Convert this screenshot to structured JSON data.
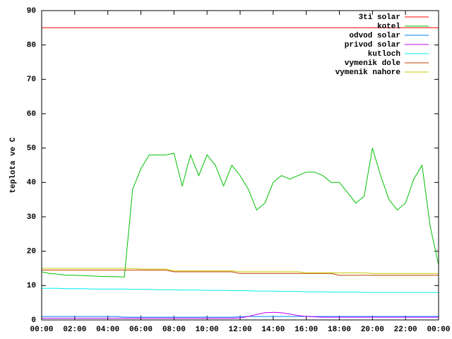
{
  "chart_data": {
    "type": "line",
    "ylabel": "teplota ve C",
    "x": [
      0,
      0.5,
      1,
      1.5,
      2,
      2.5,
      3,
      3.5,
      4,
      4.5,
      5,
      5.5,
      6,
      6.5,
      7,
      7.5,
      8,
      8.5,
      9,
      9.5,
      10,
      10.5,
      11,
      11.5,
      12,
      12.5,
      13,
      13.5,
      14,
      14.5,
      15,
      15.5,
      16,
      16.5,
      17,
      17.5,
      18,
      18.5,
      19,
      19.5,
      20,
      20.5,
      21,
      21.5,
      22,
      22.5,
      23,
      23.5,
      24
    ],
    "xlim": [
      0,
      24
    ],
    "xticks": [
      {
        "value": 0,
        "label": "00:00"
      },
      {
        "value": 2,
        "label": "02:00"
      },
      {
        "value": 4,
        "label": "04:00"
      },
      {
        "value": 6,
        "label": "06:00"
      },
      {
        "value": 8,
        "label": "08:00"
      },
      {
        "value": 10,
        "label": "10:00"
      },
      {
        "value": 12,
        "label": "12:00"
      },
      {
        "value": 14,
        "label": "14:00"
      },
      {
        "value": 16,
        "label": "16:00"
      },
      {
        "value": 18,
        "label": "18:00"
      },
      {
        "value": 20,
        "label": "20:00"
      },
      {
        "value": 22,
        "label": "22:00"
      },
      {
        "value": 24,
        "label": "00:00"
      }
    ],
    "ylim": [
      0,
      90
    ],
    "yticks": [
      0,
      10,
      20,
      30,
      40,
      50,
      60,
      70,
      80,
      90
    ],
    "legend": "top-right",
    "series": [
      {
        "name": "3ti solar",
        "color": "#ff0000",
        "values": [
          85,
          85,
          85,
          85,
          85,
          85,
          85,
          85,
          85,
          85,
          85,
          85,
          85,
          85,
          85,
          85,
          85,
          85,
          85,
          85,
          85,
          85,
          85,
          85,
          85,
          85,
          85,
          85,
          85,
          85,
          85,
          85,
          85,
          85,
          85,
          85,
          85,
          85,
          85,
          85,
          85,
          85,
          85,
          85,
          85,
          85,
          85,
          85,
          85
        ]
      },
      {
        "name": "kotel",
        "color": "#00c000",
        "values": [
          14,
          13.5,
          13.3,
          13,
          13,
          12.9,
          12.8,
          12.7,
          12.6,
          12.6,
          12.5,
          38,
          44,
          48,
          48,
          48,
          48.5,
          39,
          48,
          42,
          48,
          45,
          39,
          45,
          42,
          38,
          32,
          34,
          40,
          42,
          41,
          42,
          43,
          43,
          42,
          40,
          40,
          37,
          34,
          36,
          50,
          42,
          35,
          32,
          34,
          41,
          45,
          27,
          16
        ]
      },
      {
        "name": "odvod solar",
        "color": "#0080ff",
        "values": [
          1,
          1,
          1,
          1,
          1,
          1,
          1,
          1,
          1,
          1,
          0.8,
          0.8,
          0.8,
          0.8,
          0.8,
          0.8,
          0.8,
          0.8,
          0.8,
          0.8,
          0.8,
          0.8,
          0.8,
          0.8,
          0.9,
          1,
          1,
          1,
          1,
          1,
          1,
          1,
          1,
          1,
          1,
          1,
          1,
          1,
          1,
          1,
          1,
          1,
          1,
          1,
          1,
          1,
          1,
          1,
          1
        ]
      },
      {
        "name": "privod solar",
        "color": "#c000ff",
        "values": [
          0.5,
          0.5,
          0.5,
          0.5,
          0.5,
          0.5,
          0.5,
          0.5,
          0.5,
          0.5,
          0.5,
          0.5,
          0.5,
          0.5,
          0.5,
          0.5,
          0.5,
          0.5,
          0.5,
          0.5,
          0.5,
          0.5,
          0.5,
          0.5,
          0.6,
          1,
          1.6,
          2.1,
          2.2,
          2.1,
          1.7,
          1.3,
          1,
          0.9,
          0.8,
          0.8,
          0.8,
          0.8,
          0.8,
          0.8,
          0.8,
          0.8,
          0.8,
          0.8,
          0.8,
          0.8,
          0.8,
          0.8,
          0.8
        ]
      },
      {
        "name": "kutloch",
        "color": "#00eeee",
        "values": [
          9.2,
          9.2,
          9.2,
          9.1,
          9.1,
          9.1,
          9,
          9,
          9,
          9,
          9,
          8.9,
          8.9,
          8.9,
          8.8,
          8.8,
          8.8,
          8.7,
          8.7,
          8.7,
          8.6,
          8.6,
          8.6,
          8.5,
          8.5,
          8.5,
          8.4,
          8.4,
          8.4,
          8.3,
          8.3,
          8.3,
          8.2,
          8.2,
          8.2,
          8.1,
          8.1,
          8.1,
          8.1,
          8,
          8,
          8,
          8,
          8,
          8,
          8,
          8,
          8,
          8
        ]
      },
      {
        "name": "vymenik dole",
        "color": "#c04000",
        "values": [
          14.5,
          14.5,
          14.5,
          14.5,
          14.5,
          14.5,
          14.5,
          14.5,
          14.5,
          14.5,
          14.5,
          14.5,
          14.5,
          14.5,
          14.5,
          14.5,
          14,
          14,
          14,
          14,
          14,
          14,
          14,
          14,
          13.5,
          13.5,
          13.5,
          13.5,
          13.5,
          13.5,
          13.5,
          13.5,
          13.5,
          13.5,
          13.5,
          13.5,
          13,
          13,
          13,
          13,
          13,
          13,
          13,
          13,
          13,
          13,
          13,
          13,
          13
        ]
      },
      {
        "name": "vymenik nahore",
        "color": "#c8c800",
        "values": [
          15,
          15,
          15,
          15,
          15,
          15,
          15,
          15,
          15,
          15,
          15,
          15,
          14.8,
          14.8,
          14.8,
          14.8,
          14.3,
          14.3,
          14.3,
          14.3,
          14.3,
          14.3,
          14.3,
          14.3,
          14,
          14,
          14,
          14,
          14,
          14,
          14,
          14,
          13.7,
          13.7,
          13.7,
          13.7,
          13.7,
          13.7,
          13.7,
          13.7,
          13.5,
          13.5,
          13.5,
          13.5,
          13.5,
          13.5,
          13.5,
          13.5,
          13.5
        ]
      }
    ]
  }
}
